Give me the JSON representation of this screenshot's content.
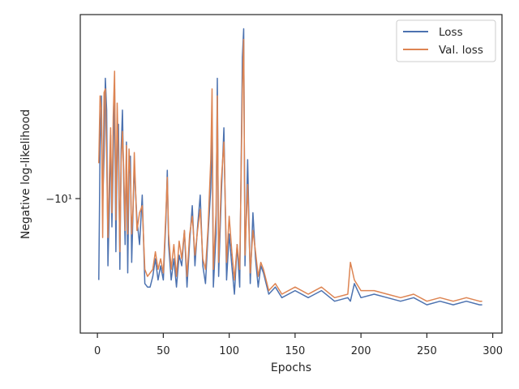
{
  "chart_data": {
    "type": "line",
    "title": "",
    "xlabel": "Epochs",
    "ylabel": "Negative log-likelihood",
    "xlim": [
      -13,
      307
    ],
    "x_ticks": [
      0,
      50,
      100,
      150,
      200,
      250,
      300
    ],
    "y_scale": "symlog",
    "y_ticks": [
      {
        "value": -10,
        "label": "−10¹"
      }
    ],
    "ylim": [
      -13.8,
      -4.8
    ],
    "grid": false,
    "legend": "top-right",
    "series": [
      {
        "name": "Loss",
        "color": "#4c72b0",
        "x": [
          1,
          2,
          3,
          4,
          5,
          6,
          7,
          8,
          9,
          10,
          11,
          12,
          13,
          14,
          15,
          16,
          17,
          18,
          19,
          20,
          21,
          22,
          23,
          24,
          25,
          26,
          27,
          28,
          30,
          32,
          34,
          36,
          38,
          40,
          42,
          44,
          46,
          48,
          50,
          52,
          53,
          54,
          56,
          58,
          60,
          62,
          64,
          66,
          68,
          70,
          72,
          74,
          76,
          78,
          80,
          82,
          84,
          86,
          87,
          88,
          90,
          91,
          92,
          94,
          96,
          98,
          100,
          102,
          104,
          106,
          108,
          110,
          111,
          112,
          114,
          116,
          118,
          120,
          122,
          124,
          126,
          130,
          135,
          140,
          150,
          160,
          170,
          180,
          190,
          192,
          195,
          200,
          210,
          220,
          230,
          240,
          250,
          260,
          270,
          280,
          290,
          292
        ],
        "y": [
          -12.3,
          -8.5,
          -7.1,
          -10.2,
          -8.8,
          -6.6,
          -7.5,
          -11.9,
          -10.3,
          -8.2,
          -10.8,
          -8.9,
          -6.9,
          -11.5,
          -8.5,
          -7.9,
          -12.0,
          -8.6,
          -7.5,
          -9.6,
          -11.3,
          -8.4,
          -12.1,
          -9.3,
          -8.8,
          -11.8,
          -10.4,
          -9.1,
          -10.6,
          -11.3,
          -9.9,
          -12.4,
          -12.5,
          -12.5,
          -12.2,
          -11.7,
          -12.3,
          -11.9,
          -12.3,
          -10.6,
          -9.2,
          -11.3,
          -12.3,
          -11.7,
          -12.5,
          -11.6,
          -11.9,
          -10.9,
          -12.5,
          -11.2,
          -10.2,
          -11.9,
          -10.8,
          -9.9,
          -11.9,
          -12.4,
          -11.0,
          -9.7,
          -7.9,
          -12.5,
          -11.0,
          -6.6,
          -12.2,
          -9.9,
          -8.0,
          -12.3,
          -11.0,
          -11.9,
          -12.7,
          -11.3,
          -12.5,
          -6.0,
          -5.2,
          -11.9,
          -8.9,
          -12.4,
          -10.4,
          -11.7,
          -12.5,
          -11.9,
          -12.1,
          -12.7,
          -12.5,
          -12.8,
          -12.6,
          -12.8,
          -12.6,
          -12.9,
          -12.8,
          -12.9,
          -12.4,
          -12.8,
          -12.7,
          -12.8,
          -12.9,
          -12.8,
          -13.0,
          -12.9,
          -13.0,
          -12.9,
          -13.0,
          -13.0
        ]
      },
      {
        "name": "Val. loss",
        "color": "#dd8452",
        "x": [
          1,
          2,
          3,
          4,
          5,
          6,
          7,
          8,
          9,
          10,
          11,
          12,
          13,
          14,
          15,
          16,
          17,
          18,
          19,
          20,
          21,
          22,
          23,
          24,
          25,
          26,
          27,
          28,
          30,
          32,
          34,
          36,
          38,
          40,
          42,
          44,
          46,
          48,
          50,
          52,
          53,
          54,
          56,
          58,
          60,
          62,
          64,
          66,
          68,
          70,
          72,
          74,
          76,
          78,
          80,
          82,
          84,
          86,
          87,
          88,
          90,
          91,
          92,
          94,
          96,
          98,
          100,
          102,
          104,
          106,
          108,
          110,
          111,
          112,
          114,
          116,
          118,
          120,
          122,
          124,
          126,
          130,
          135,
          140,
          150,
          160,
          170,
          180,
          190,
          192,
          195,
          200,
          210,
          220,
          230,
          240,
          250,
          260,
          270,
          280,
          290,
          292
        ],
        "y": [
          -9.0,
          -7.1,
          -7.5,
          -11.1,
          -7.0,
          -6.9,
          -8.9,
          -11.1,
          -9.4,
          -8.0,
          -10.4,
          -7.7,
          -6.4,
          -10.6,
          -7.3,
          -9.0,
          -11.5,
          -9.0,
          -8.1,
          -9.2,
          -10.9,
          -8.5,
          -11.0,
          -8.6,
          -9.4,
          -11.0,
          -10.3,
          -8.7,
          -10.9,
          -10.4,
          -10.2,
          -12.0,
          -12.2,
          -12.1,
          -12.0,
          -11.5,
          -12.0,
          -11.7,
          -12.1,
          -10.4,
          -9.4,
          -11.0,
          -12.0,
          -11.3,
          -12.2,
          -11.2,
          -11.7,
          -10.9,
          -12.2,
          -11.0,
          -10.5,
          -11.6,
          -10.9,
          -10.3,
          -11.7,
          -12.0,
          -10.8,
          -8.9,
          -6.9,
          -12.0,
          -10.4,
          -7.1,
          -11.8,
          -9.5,
          -8.4,
          -11.8,
          -10.5,
          -11.5,
          -12.3,
          -11.3,
          -12.0,
          -6.9,
          -5.5,
          -11.6,
          -9.6,
          -12.1,
          -10.9,
          -11.5,
          -12.2,
          -11.8,
          -12.0,
          -12.6,
          -12.4,
          -12.7,
          -12.5,
          -12.7,
          -12.5,
          -12.8,
          -12.7,
          -11.8,
          -12.3,
          -12.6,
          -12.6,
          -12.7,
          -12.8,
          -12.7,
          -12.9,
          -12.8,
          -12.9,
          -12.8,
          -12.9,
          -12.9
        ]
      }
    ]
  }
}
